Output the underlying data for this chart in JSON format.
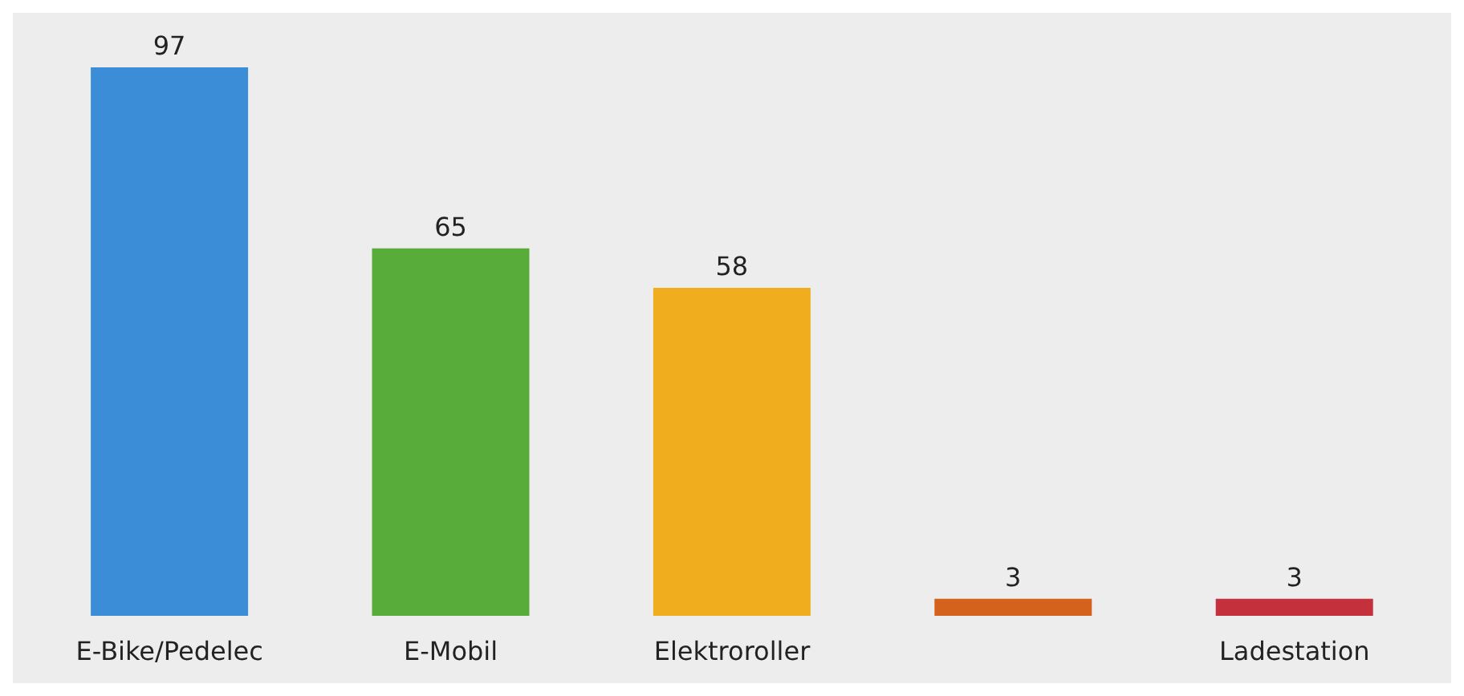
{
  "chart_data": {
    "type": "bar",
    "categories": [
      "E-Bike/Pedelec",
      "E-Mobil",
      "Elektroroller",
      null,
      "Ladestation"
    ],
    "values": [
      97,
      65,
      58,
      3,
      3
    ],
    "colors": [
      "#3a8dd6",
      "#58ad3a",
      "#f0ae1e",
      "#d4621c",
      "#c4303c"
    ],
    "data_labels": true
  }
}
